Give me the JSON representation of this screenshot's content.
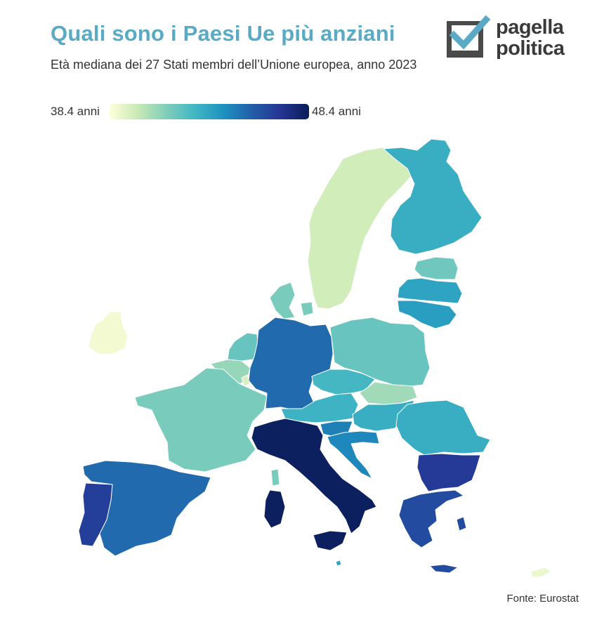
{
  "title": "Quali sono i Paesi Ue più anziani",
  "subtitle": "Età mediana dei 27 Stati membri dell’Unione europea, anno 2023",
  "logo": {
    "line1": "pagella",
    "line2": "politica",
    "box_color": "#4a4a4a",
    "check_color": "#5aaac6"
  },
  "legend": {
    "min_label": "38.4 anni",
    "max_label": "48.4 anni",
    "min": 38.4,
    "max": 48.4
  },
  "source": "Fonte: Eurostat",
  "colors": {
    "title": "#5aaac6",
    "text": "#333333",
    "background": "#ffffff"
  },
  "map_shading": {
    "Italia": 0.98,
    "Portogallo": 0.82,
    "Grecia": 0.78,
    "Bulgaria": 0.84,
    "Spagna": 0.68,
    "Germania": 0.68,
    "Croazia": 0.6,
    "Slovenia": 0.62,
    "Lituania": 0.52,
    "Lettonia": 0.5,
    "Romania": 0.46,
    "Finlandia": 0.46,
    "Ungheria": 0.46,
    "Austria": 0.44,
    "Cechia": 0.42,
    "Estonia": 0.32,
    "Paesi Bassi": 0.34,
    "Danimarca": 0.3,
    "Polonia": 0.34,
    "Francia": 0.3,
    "Belgio": 0.24,
    "Slovacchia": 0.22,
    "Svezia": 0.12,
    "Lussemburgo": 0.1,
    "Irlanda": 0.03,
    "Cipro": 0.05,
    "Malta": 0.5
  }
}
